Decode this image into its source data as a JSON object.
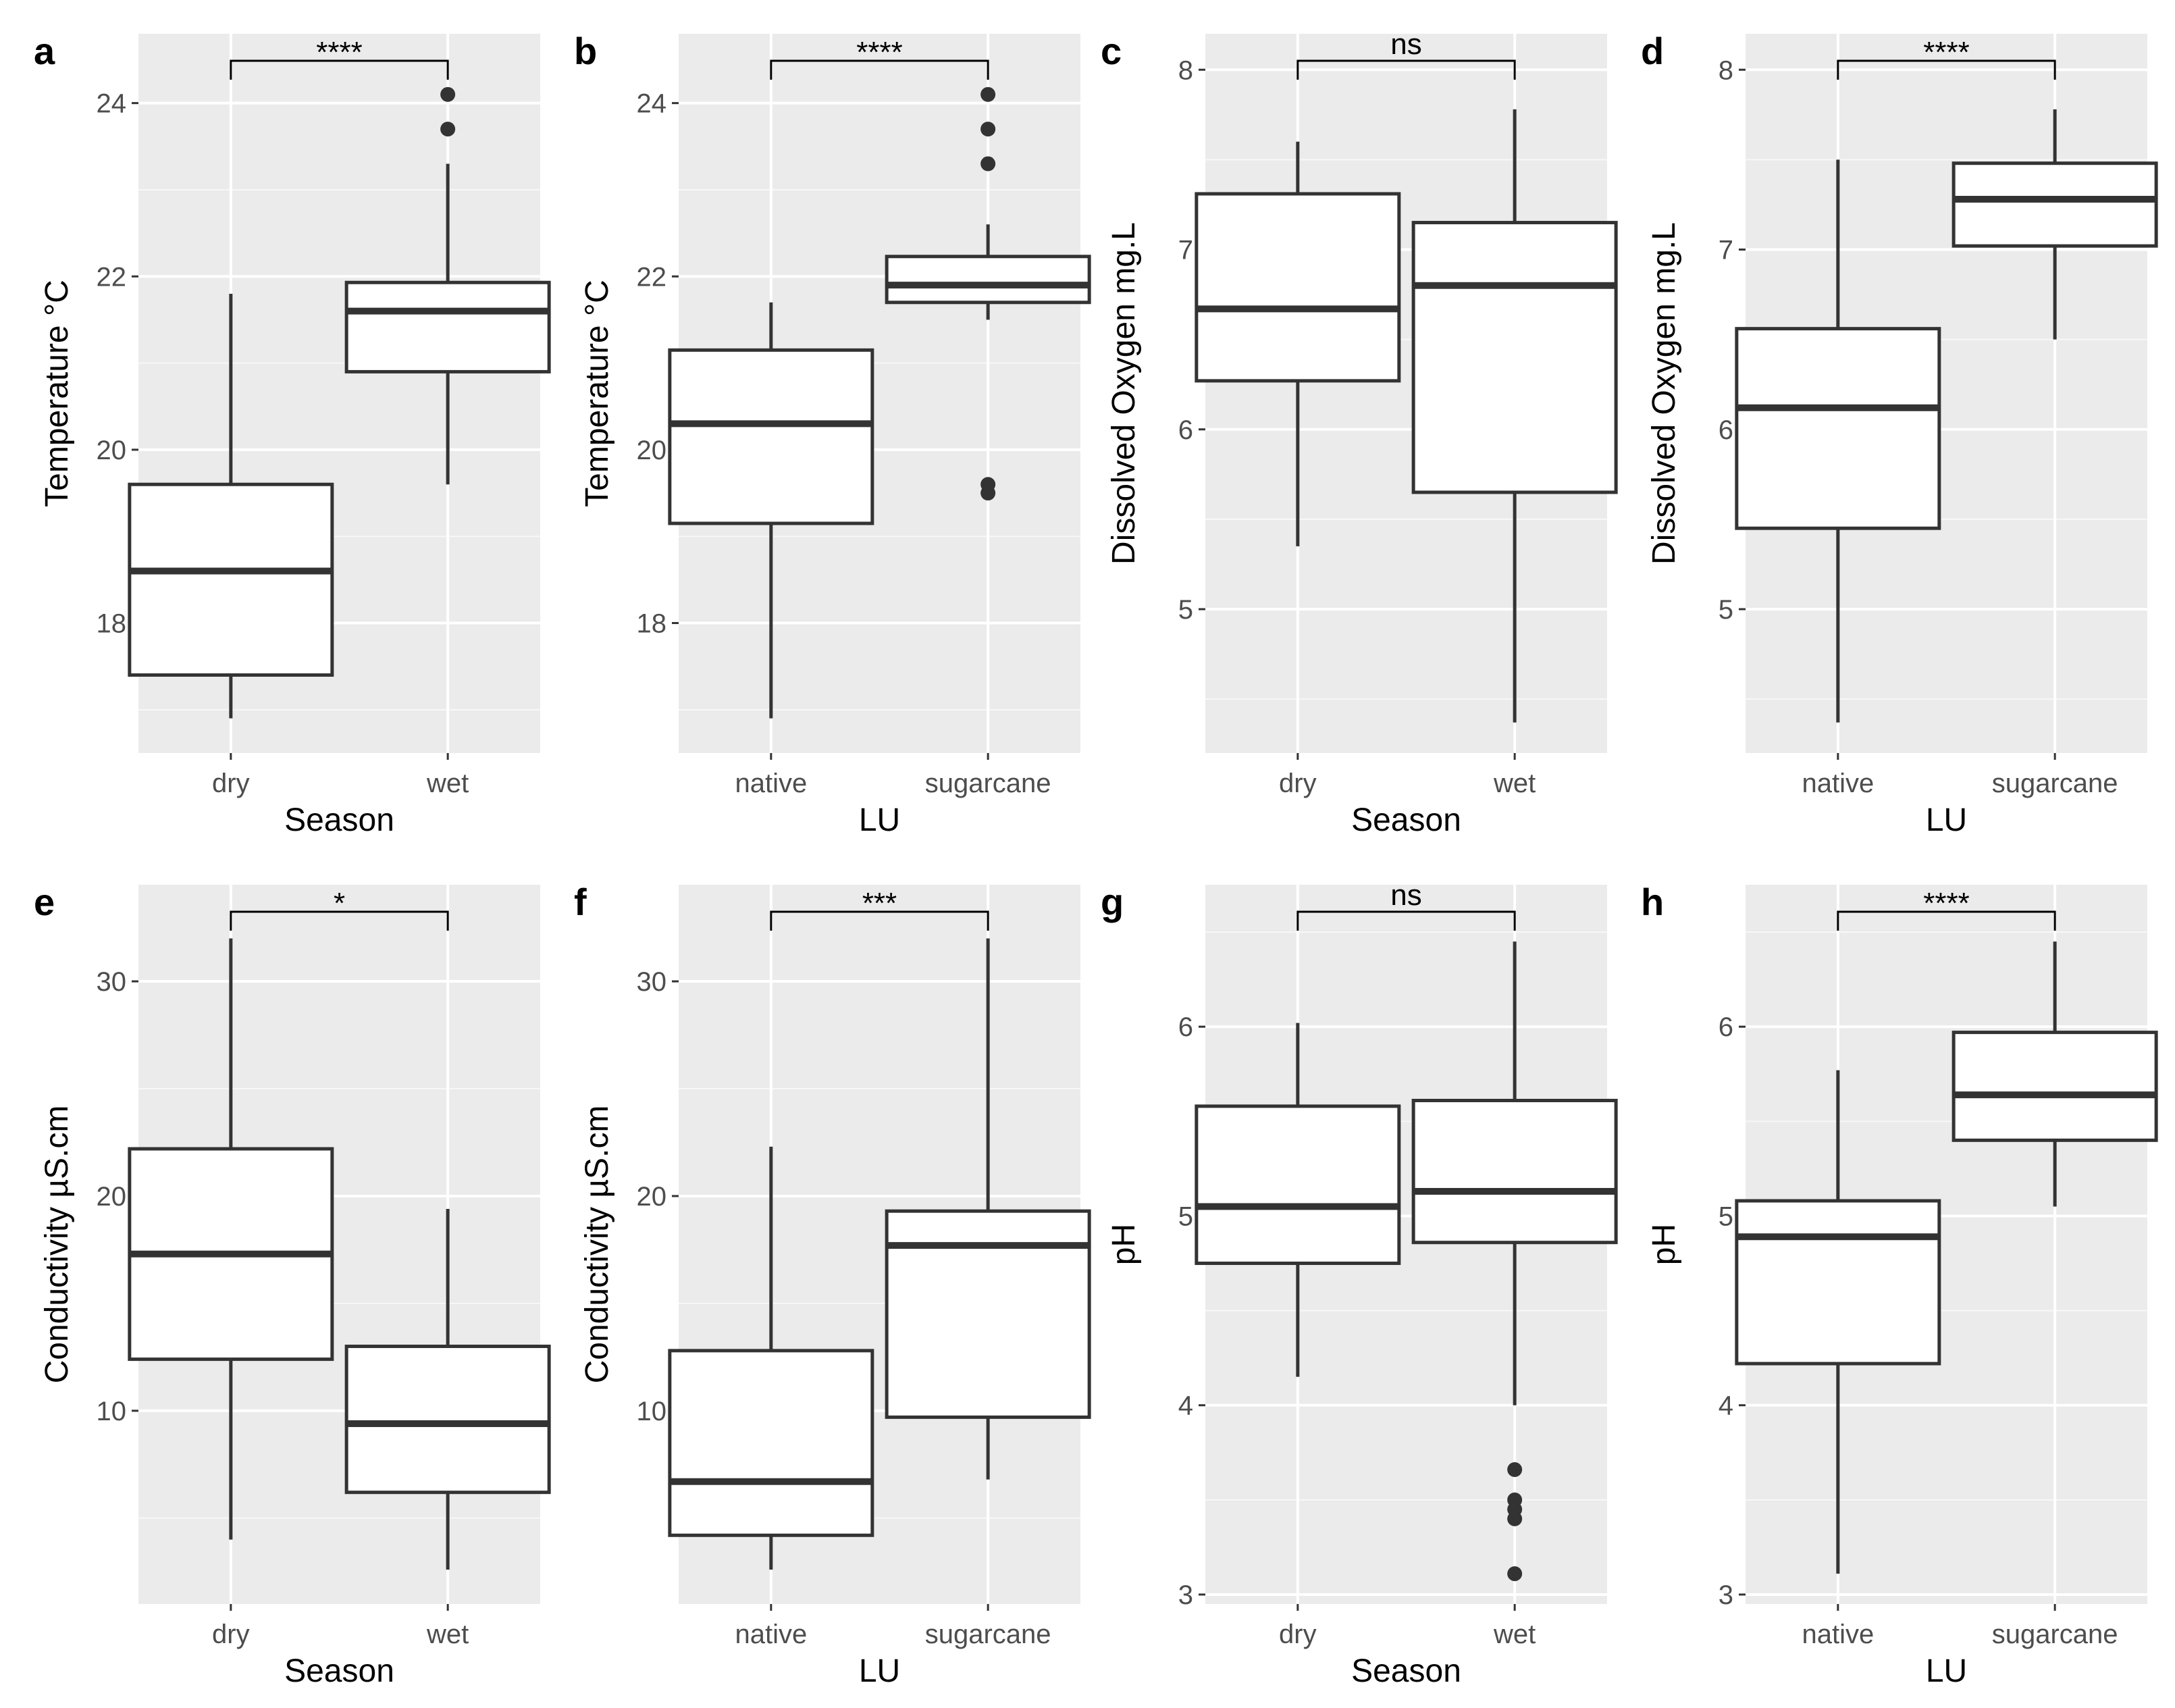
{
  "chart_data": [
    {
      "panel": "a",
      "type": "box",
      "xlabel": "Season",
      "ylabel": "Temperature °C",
      "ylim": [
        16.5,
        24.8
      ],
      "yticks": [
        18,
        20,
        22,
        24
      ],
      "significance": "****",
      "categories": [
        "dry",
        "wet"
      ],
      "boxes": [
        {
          "whisker_low": 16.9,
          "q1": 17.4,
          "median": 18.6,
          "q3": 19.6,
          "whisker_high": 21.8,
          "outliers": []
        },
        {
          "whisker_low": 19.6,
          "q1": 20.9,
          "median": 21.6,
          "q3": 21.93,
          "whisker_high": 23.3,
          "outliers": [
            23.7,
            24.1
          ]
        }
      ]
    },
    {
      "panel": "b",
      "type": "box",
      "xlabel": "LU",
      "ylabel": "Temperature °C",
      "ylim": [
        16.5,
        24.8
      ],
      "yticks": [
        18,
        20,
        22,
        24
      ],
      "significance": "****",
      "categories": [
        "native",
        "sugarcane"
      ],
      "boxes": [
        {
          "whisker_low": 16.9,
          "q1": 19.15,
          "median": 20.3,
          "q3": 21.15,
          "whisker_high": 21.7,
          "outliers": []
        },
        {
          "whisker_low": 21.5,
          "q1": 21.7,
          "median": 21.9,
          "q3": 22.23,
          "whisker_high": 22.6,
          "outliers": [
            19.5,
            19.6,
            23.3,
            23.7,
            24.1
          ]
        }
      ]
    },
    {
      "panel": "c",
      "type": "box",
      "xlabel": "Season",
      "ylabel": "Dissolved Oxygen mg.L",
      "ylim": [
        4.2,
        8.2
      ],
      "yticks": [
        5,
        6,
        7,
        8
      ],
      "significance": "ns",
      "categories": [
        "dry",
        "wet"
      ],
      "boxes": [
        {
          "whisker_low": 5.35,
          "q1": 6.27,
          "median": 6.67,
          "q3": 7.31,
          "whisker_high": 7.6,
          "outliers": []
        },
        {
          "whisker_low": 4.37,
          "q1": 5.65,
          "median": 6.8,
          "q3": 7.15,
          "whisker_high": 7.78,
          "outliers": []
        }
      ]
    },
    {
      "panel": "d",
      "type": "box",
      "xlabel": "LU",
      "ylabel": "Dissolved Oxygen mg.L",
      "ylim": [
        4.2,
        8.2
      ],
      "yticks": [
        5,
        6,
        7,
        8
      ],
      "significance": "****",
      "categories": [
        "native",
        "sugarcane"
      ],
      "boxes": [
        {
          "whisker_low": 4.37,
          "q1": 5.45,
          "median": 6.12,
          "q3": 6.56,
          "whisker_high": 7.5,
          "outliers": []
        },
        {
          "whisker_low": 6.5,
          "q1": 7.02,
          "median": 7.28,
          "q3": 7.48,
          "whisker_high": 7.78,
          "outliers": []
        }
      ]
    },
    {
      "panel": "e",
      "type": "box",
      "xlabel": "Season",
      "ylabel": "Conductivity µS.cm",
      "ylim": [
        1,
        34.5
      ],
      "yticks": [
        10,
        20,
        30
      ],
      "significance": "*",
      "categories": [
        "dry",
        "wet"
      ],
      "boxes": [
        {
          "whisker_low": 4.0,
          "q1": 12.4,
          "median": 17.3,
          "q3": 22.2,
          "whisker_high": 32.0,
          "outliers": []
        },
        {
          "whisker_low": 2.6,
          "q1": 6.2,
          "median": 9.4,
          "q3": 13.0,
          "whisker_high": 19.4,
          "outliers": []
        }
      ]
    },
    {
      "panel": "f",
      "type": "box",
      "xlabel": "LU",
      "ylabel": "Conductivity µS.cm",
      "ylim": [
        1,
        34.5
      ],
      "yticks": [
        10,
        20,
        30
      ],
      "significance": "***",
      "categories": [
        "native",
        "sugarcane"
      ],
      "boxes": [
        {
          "whisker_low": 2.6,
          "q1": 4.2,
          "median": 6.7,
          "q3": 12.8,
          "whisker_high": 22.3,
          "outliers": []
        },
        {
          "whisker_low": 6.8,
          "q1": 9.7,
          "median": 17.7,
          "q3": 19.3,
          "whisker_high": 32.0,
          "outliers": []
        }
      ]
    },
    {
      "panel": "g",
      "type": "box",
      "xlabel": "Season",
      "ylabel": "pH",
      "ylim": [
        2.95,
        6.75
      ],
      "yticks": [
        3,
        4,
        5,
        6
      ],
      "significance": "ns",
      "categories": [
        "dry",
        "wet"
      ],
      "boxes": [
        {
          "whisker_low": 4.15,
          "q1": 4.75,
          "median": 5.05,
          "q3": 5.58,
          "whisker_high": 6.02,
          "outliers": []
        },
        {
          "whisker_low": 4.0,
          "q1": 4.86,
          "median": 5.13,
          "q3": 5.61,
          "whisker_high": 6.45,
          "outliers": [
            3.11,
            3.4,
            3.45,
            3.5,
            3.66
          ]
        }
      ]
    },
    {
      "panel": "h",
      "type": "box",
      "xlabel": "LU",
      "ylabel": "pH",
      "ylim": [
        2.95,
        6.75
      ],
      "yticks": [
        3,
        4,
        5,
        6
      ],
      "significance": "****",
      "categories": [
        "native",
        "sugarcane"
      ],
      "boxes": [
        {
          "whisker_low": 3.11,
          "q1": 4.22,
          "median": 4.89,
          "q3": 5.08,
          "whisker_high": 5.77,
          "outliers": []
        },
        {
          "whisker_low": 5.05,
          "q1": 5.4,
          "median": 5.64,
          "q3": 5.97,
          "whisker_high": 6.45,
          "outliers": []
        }
      ]
    }
  ]
}
